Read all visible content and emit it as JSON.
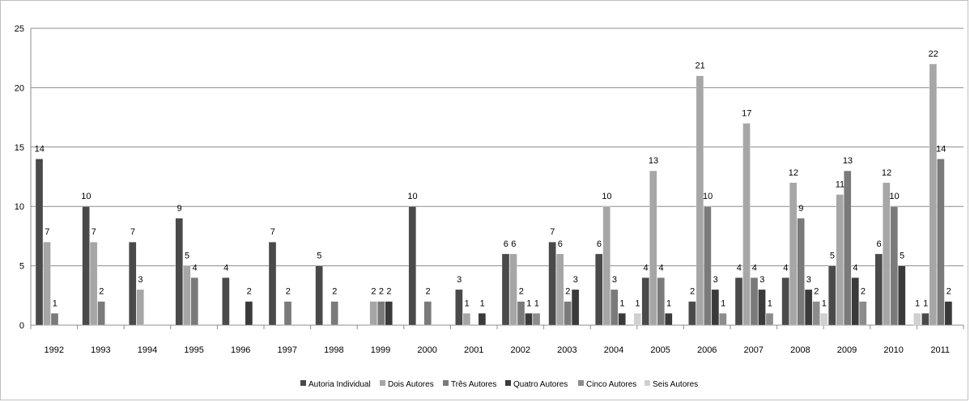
{
  "chart_data": {
    "type": "bar",
    "categories": [
      "1992",
      "1993",
      "1994",
      "1995",
      "1996",
      "1997",
      "1998",
      "1999",
      "2000",
      "2001",
      "2002",
      "2003",
      "2004",
      "2005",
      "2006",
      "2007",
      "2008",
      "2009",
      "2010",
      "2011"
    ],
    "ylim": [
      0,
      25
    ],
    "yticks": [
      0,
      5,
      10,
      15,
      20,
      25
    ],
    "grid": true,
    "legend_position": "bottom",
    "series": [
      {
        "name": "Autoria Individual",
        "color": "#4a4a4a",
        "values": [
          14,
          10,
          7,
          9,
          4,
          7,
          5,
          null,
          10,
          3,
          6,
          7,
          6,
          4,
          2,
          4,
          4,
          5,
          6,
          1
        ]
      },
      {
        "name": "Dois Autores",
        "color": "#a6a6a6",
        "values": [
          7,
          7,
          3,
          5,
          null,
          null,
          null,
          2,
          null,
          1,
          6,
          6,
          10,
          13,
          21,
          17,
          12,
          11,
          12,
          22
        ]
      },
      {
        "name": "Três Autores",
        "color": "#7a7a7a",
        "values": [
          1,
          2,
          null,
          4,
          null,
          2,
          2,
          2,
          2,
          null,
          2,
          2,
          3,
          4,
          10,
          4,
          9,
          13,
          10,
          14
        ]
      },
      {
        "name": "Quatro Autores",
        "color": "#3a3a3a",
        "values": [
          null,
          null,
          null,
          null,
          2,
          null,
          null,
          2,
          null,
          1,
          1,
          3,
          1,
          1,
          3,
          3,
          3,
          4,
          5,
          2
        ]
      },
      {
        "name": "Cinco Autores",
        "color": "#8c8c8c",
        "values": [
          null,
          null,
          null,
          null,
          null,
          null,
          null,
          null,
          null,
          null,
          1,
          null,
          null,
          null,
          1,
          1,
          2,
          2,
          null,
          null
        ]
      },
      {
        "name": "Seis Autores",
        "color": "#d0d0d0",
        "values": [
          null,
          null,
          null,
          null,
          null,
          null,
          null,
          null,
          null,
          null,
          null,
          null,
          1,
          null,
          null,
          null,
          1,
          null,
          1,
          null
        ]
      }
    ]
  }
}
